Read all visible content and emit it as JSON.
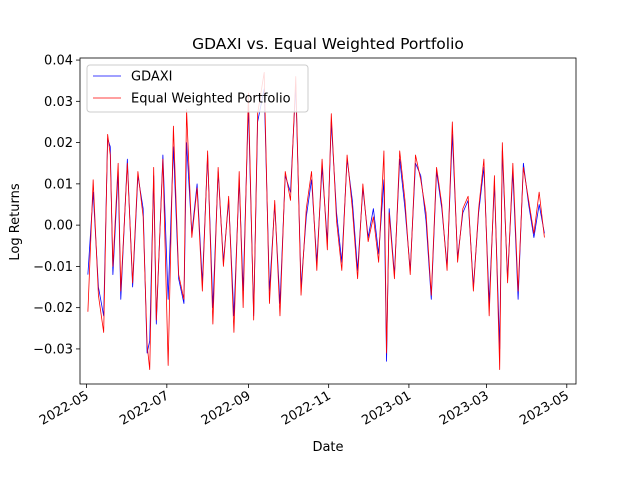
{
  "chart_data": {
    "type": "line",
    "title": "GDAXI vs. Equal Weighted Portfolio",
    "xlabel": "Date",
    "ylabel": "Log Returns",
    "xlim": [
      "2022-04-26",
      "2023-05-08"
    ],
    "ylim": [
      -0.0385,
      0.0405
    ],
    "yticks": [
      -0.03,
      -0.02,
      -0.01,
      0.0,
      0.01,
      0.02,
      0.03,
      0.04
    ],
    "ytick_labels": [
      "−0.03",
      "−0.02",
      "−0.01",
      "0.00",
      "0.01",
      "0.02",
      "0.03",
      "0.04"
    ],
    "xticks": [
      "2022-05-01",
      "2022-07-01",
      "2022-09-01",
      "2022-11-01",
      "2023-01-01",
      "2023-03-01",
      "2023-05-01"
    ],
    "xtick_labels": [
      "2022-05",
      "2022-07",
      "2022-09",
      "2022-11",
      "2023-01",
      "2023-03",
      "2023-05"
    ],
    "grid": false,
    "legend_position": "top-left",
    "series": [
      {
        "name": "GDAXI",
        "color": "#0000ff",
        "x": [
          "2022-05-02",
          "2022-05-06",
          "2022-05-10",
          "2022-05-14",
          "2022-05-17",
          "2022-05-19",
          "2022-05-21",
          "2022-05-25",
          "2022-05-27",
          "2022-06-01",
          "2022-06-05",
          "2022-06-09",
          "2022-06-13",
          "2022-06-16",
          "2022-06-18",
          "2022-06-21",
          "2022-06-23",
          "2022-06-28",
          "2022-07-02",
          "2022-07-06",
          "2022-07-10",
          "2022-07-14",
          "2022-07-16",
          "2022-07-20",
          "2022-07-24",
          "2022-07-28",
          "2022-08-01",
          "2022-08-05",
          "2022-08-09",
          "2022-08-13",
          "2022-08-17",
          "2022-08-21",
          "2022-08-25",
          "2022-08-28",
          "2022-09-01",
          "2022-09-05",
          "2022-09-08",
          "2022-09-13",
          "2022-09-17",
          "2022-09-21",
          "2022-09-25",
          "2022-09-29",
          "2022-10-03",
          "2022-10-07",
          "2022-10-11",
          "2022-10-15",
          "2022-10-19",
          "2022-10-23",
          "2022-10-27",
          "2022-10-31",
          "2022-11-03",
          "2022-11-07",
          "2022-11-11",
          "2022-11-15",
          "2022-11-19",
          "2022-11-23",
          "2022-11-27",
          "2022-12-01",
          "2022-12-05",
          "2022-12-09",
          "2022-12-13",
          "2022-12-15",
          "2022-12-17",
          "2022-12-21",
          "2022-12-25",
          "2022-12-29",
          "2023-01-02",
          "2023-01-06",
          "2023-01-10",
          "2023-01-14",
          "2023-01-18",
          "2023-01-22",
          "2023-01-26",
          "2023-01-30",
          "2023-02-03",
          "2023-02-07",
          "2023-02-11",
          "2023-02-15",
          "2023-02-19",
          "2023-02-23",
          "2023-02-27",
          "2023-03-03",
          "2023-03-07",
          "2023-03-11",
          "2023-03-13",
          "2023-03-17",
          "2023-03-21",
          "2023-03-25",
          "2023-03-29",
          "2023-04-02",
          "2023-04-06",
          "2023-04-10",
          "2023-04-14"
        ],
        "values": [
          -0.012,
          0.008,
          -0.015,
          -0.022,
          0.021,
          0.019,
          -0.012,
          0.013,
          -0.018,
          0.016,
          -0.015,
          0.012,
          0.004,
          -0.031,
          -0.028,
          0.012,
          -0.024,
          0.017,
          -0.018,
          0.019,
          -0.013,
          -0.019,
          0.02,
          -0.002,
          0.01,
          -0.014,
          0.017,
          -0.02,
          0.013,
          -0.009,
          0.006,
          -0.022,
          0.011,
          -0.016,
          0.029,
          -0.022,
          0.025,
          0.033,
          -0.016,
          0.005,
          -0.019,
          0.012,
          0.008,
          0.034,
          -0.015,
          0.002,
          0.011,
          -0.009,
          0.014,
          -0.004,
          0.025,
          0.003,
          -0.009,
          0.016,
          0.006,
          -0.011,
          0.009,
          -0.003,
          0.004,
          -0.007,
          0.011,
          -0.033,
          0.004,
          -0.012,
          0.016,
          0.004,
          -0.011,
          0.015,
          0.012,
          0.001,
          -0.018,
          0.013,
          0.004,
          -0.01,
          0.022,
          -0.008,
          0.003,
          0.006,
          -0.015,
          0.003,
          0.014,
          -0.019,
          0.01,
          -0.03,
          0.018,
          -0.013,
          0.013,
          -0.018,
          0.015,
          0.005,
          -0.003,
          0.005,
          -0.002
        ]
      },
      {
        "name": "Equal Weighted Portfolio",
        "color": "#ff0000",
        "x": [
          "2022-05-02",
          "2022-05-06",
          "2022-05-10",
          "2022-05-14",
          "2022-05-17",
          "2022-05-19",
          "2022-05-21",
          "2022-05-25",
          "2022-05-27",
          "2022-06-01",
          "2022-06-05",
          "2022-06-09",
          "2022-06-13",
          "2022-06-16",
          "2022-06-18",
          "2022-06-21",
          "2022-06-23",
          "2022-06-28",
          "2022-07-02",
          "2022-07-06",
          "2022-07-10",
          "2022-07-14",
          "2022-07-16",
          "2022-07-20",
          "2022-07-24",
          "2022-07-28",
          "2022-08-01",
          "2022-08-05",
          "2022-08-09",
          "2022-08-13",
          "2022-08-17",
          "2022-08-21",
          "2022-08-25",
          "2022-08-28",
          "2022-09-01",
          "2022-09-05",
          "2022-09-08",
          "2022-09-13",
          "2022-09-17",
          "2022-09-21",
          "2022-09-25",
          "2022-09-29",
          "2022-10-03",
          "2022-10-07",
          "2022-10-11",
          "2022-10-15",
          "2022-10-19",
          "2022-10-23",
          "2022-10-27",
          "2022-10-31",
          "2022-11-03",
          "2022-11-07",
          "2022-11-11",
          "2022-11-15",
          "2022-11-19",
          "2022-11-23",
          "2022-11-27",
          "2022-12-01",
          "2022-12-05",
          "2022-12-09",
          "2022-12-13",
          "2022-12-15",
          "2022-12-17",
          "2022-12-21",
          "2022-12-25",
          "2022-12-29",
          "2023-01-02",
          "2023-01-06",
          "2023-01-10",
          "2023-01-14",
          "2023-01-18",
          "2023-01-22",
          "2023-01-26",
          "2023-01-30",
          "2023-02-03",
          "2023-02-07",
          "2023-02-11",
          "2023-02-15",
          "2023-02-19",
          "2023-02-23",
          "2023-02-27",
          "2023-03-03",
          "2023-03-07",
          "2023-03-11",
          "2023-03-13",
          "2023-03-17",
          "2023-03-21",
          "2023-03-25",
          "2023-03-29",
          "2023-04-02",
          "2023-04-06",
          "2023-04-10",
          "2023-04-14"
        ],
        "values": [
          -0.021,
          0.011,
          -0.017,
          -0.026,
          0.022,
          0.017,
          -0.01,
          0.015,
          -0.016,
          0.015,
          -0.014,
          0.013,
          0.002,
          -0.029,
          -0.035,
          0.014,
          -0.023,
          0.016,
          -0.034,
          0.024,
          -0.012,
          -0.018,
          0.028,
          -0.003,
          0.009,
          -0.016,
          0.018,
          -0.024,
          0.014,
          -0.01,
          0.007,
          -0.026,
          0.013,
          -0.02,
          0.032,
          -0.023,
          0.027,
          0.037,
          -0.019,
          0.006,
          -0.022,
          0.013,
          0.006,
          0.036,
          -0.017,
          0.004,
          0.013,
          -0.011,
          0.016,
          -0.006,
          0.027,
          0.001,
          -0.011,
          0.017,
          0.004,
          -0.013,
          0.01,
          -0.004,
          0.002,
          -0.009,
          0.018,
          -0.031,
          0.003,
          -0.013,
          0.018,
          0.006,
          -0.012,
          0.017,
          0.011,
          0.003,
          -0.017,
          0.014,
          0.005,
          -0.011,
          0.025,
          -0.009,
          0.004,
          0.007,
          -0.016,
          0.004,
          0.016,
          -0.022,
          0.012,
          -0.035,
          0.02,
          -0.014,
          0.015,
          -0.016,
          0.014,
          0.006,
          -0.002,
          0.008,
          -0.003
        ]
      }
    ]
  }
}
